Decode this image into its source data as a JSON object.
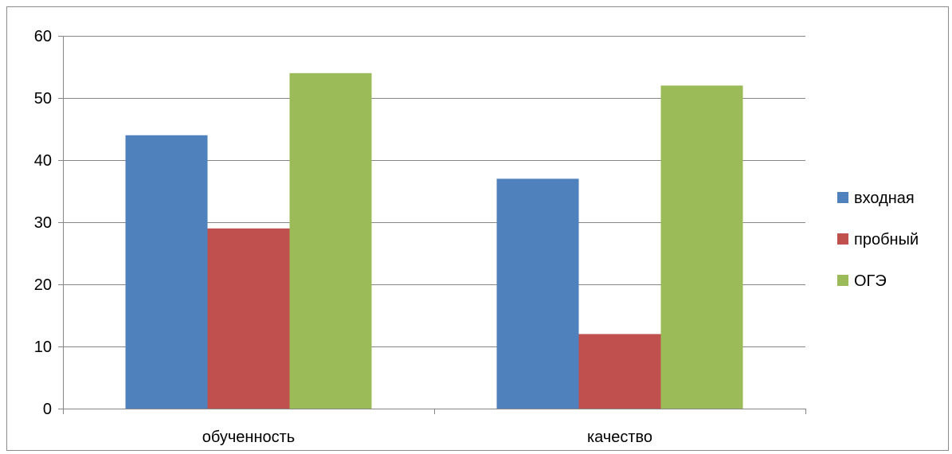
{
  "chart_data": {
    "type": "bar",
    "title": "",
    "xlabel": "",
    "ylabel": "",
    "categories": [
      "обученность",
      "качество"
    ],
    "series": [
      {
        "name": "входная",
        "color": "#4F81BD",
        "values": [
          44,
          37
        ]
      },
      {
        "name": "пробный",
        "color": "#C0504D",
        "values": [
          29,
          12
        ]
      },
      {
        "name": "ОГЭ",
        "color": "#9BBB59",
        "values": [
          54,
          52
        ]
      }
    ],
    "ylim": [
      0,
      60
    ],
    "yticks": [
      0,
      10,
      20,
      30,
      40,
      50,
      60
    ],
    "grid": true,
    "legend_position": "right"
  }
}
